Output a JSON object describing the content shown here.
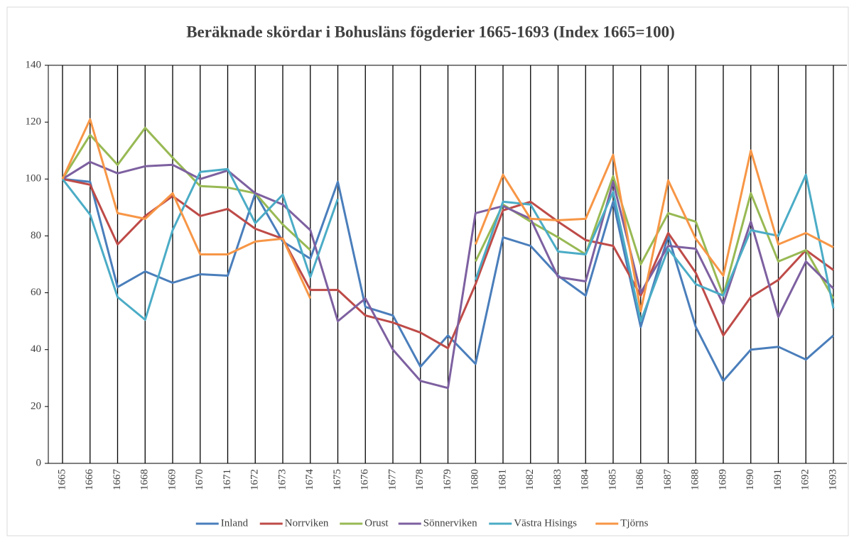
{
  "chart_data": {
    "type": "line",
    "title": "Beräknade skördar i Bohusläns fögderier 1665-1693 (Index 1665=100)",
    "categories": [
      "1665",
      "1666",
      "1667",
      "1668",
      "1669",
      "1670",
      "1671",
      "1672",
      "1673",
      "1674",
      "1675",
      "1676",
      "1677",
      "1678",
      "1679",
      "1680",
      "1681",
      "1682",
      "1683",
      "1684",
      "1685",
      "1686",
      "1687",
      "1688",
      "1689",
      "1690",
      "1691",
      "1692",
      "1693"
    ],
    "series": [
      {
        "name": "Inland",
        "color": "#4a7ebb",
        "values": [
          100,
          99,
          62,
          67.5,
          63.5,
          66.5,
          66,
          95,
          78,
          72,
          99,
          55,
          52,
          34,
          45,
          35,
          79.5,
          76.5,
          66,
          59,
          92,
          48,
          80,
          48,
          29,
          40,
          41,
          36.5,
          45
        ]
      },
      {
        "name": "Norrviken",
        "color": "#be4b48",
        "values": [
          100,
          98,
          77,
          87,
          94,
          87,
          89.5,
          82.5,
          79,
          61,
          61,
          52,
          49.5,
          46,
          40.5,
          63,
          89,
          92,
          85,
          78.5,
          76.5,
          59,
          81,
          67,
          45,
          58.5,
          64.5,
          75,
          68
        ]
      },
      {
        "name": "Orust",
        "color": "#98b954",
        "values": [
          100,
          115.5,
          105,
          118,
          107.5,
          97.5,
          97,
          95,
          84,
          75,
          null,
          null,
          null,
          null,
          null,
          71,
          91,
          85,
          79.5,
          73.5,
          101,
          70,
          88,
          85,
          59,
          95,
          71,
          75,
          58
        ]
      },
      {
        "name": "Sönnerviken",
        "color": "#7d60a0",
        "values": [
          100,
          106,
          102,
          104.5,
          105,
          100,
          103,
          95,
          91,
          82,
          50,
          58,
          40,
          29,
          26.5,
          88,
          90.5,
          86,
          65.5,
          64,
          99,
          60,
          76.5,
          75.5,
          56,
          85,
          51.5,
          71,
          61.5
        ]
      },
      {
        "name": "Västra Hisings",
        "color": "#4bacc6",
        "values": [
          100,
          87.5,
          58.5,
          50.5,
          82,
          102.5,
          103.5,
          84.5,
          94.5,
          65.5,
          93,
          null,
          null,
          null,
          null,
          64.5,
          92,
          91,
          74.5,
          73.5,
          95.5,
          50,
          75.5,
          63,
          59,
          82,
          80,
          101.5,
          54.5
        ]
      },
      {
        "name": "Tjörns",
        "color": "#f79646",
        "values": [
          100,
          121,
          88,
          86,
          95,
          73.5,
          73.5,
          78,
          79,
          58,
          null,
          null,
          null,
          null,
          null,
          77,
          101.5,
          86,
          85.5,
          86,
          108.5,
          53.5,
          99.5,
          79,
          66,
          110,
          77,
          81,
          76
        ]
      }
    ],
    "ylim": [
      0,
      140
    ],
    "yticks": [
      0,
      20,
      40,
      60,
      80,
      100,
      120,
      140
    ],
    "grid": "vertical",
    "legend": "bottom"
  }
}
